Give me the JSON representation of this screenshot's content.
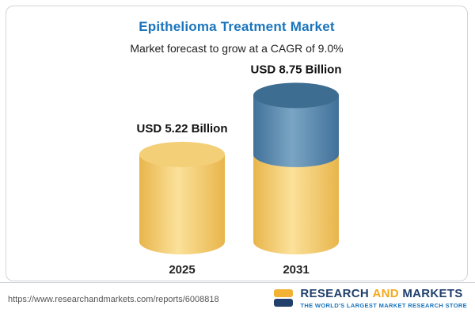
{
  "chart_data": {
    "type": "bar",
    "variant": "3d-cylinder",
    "title": "Epithelioma Treatment Market",
    "subtitle": "Market forecast to grow at a CAGR of 9.0%",
    "unit": "USD Billion",
    "categories": [
      "2025",
      "2031"
    ],
    "values": [
      5.22,
      8.75
    ],
    "value_labels": [
      "USD 5.22 Billion",
      "USD 8.75 Billion"
    ],
    "xlabel": "",
    "ylabel": "",
    "legend": "none",
    "grid": "off",
    "bars": [
      {
        "category": "2025",
        "value": 5.22,
        "label": "USD 5.22 Billion",
        "segments": [
          {
            "value": 5.22,
            "color": "yellow"
          }
        ]
      },
      {
        "category": "2031",
        "value": 8.75,
        "label": "USD 8.75 Billion",
        "segments": [
          {
            "value": 5.22,
            "color": "yellow"
          },
          {
            "value": 3.53,
            "color": "blue"
          }
        ]
      }
    ],
    "colors": {
      "yellow": {
        "edge": "#e8b54b",
        "mid": "#fbe19a",
        "cap": "#f3cf78"
      },
      "blue": {
        "edge": "#41719a",
        "mid": "#7aa5c4",
        "cap": "#3e6d92"
      }
    },
    "title_color": "#1b75bc"
  },
  "footer": {
    "url": "https://www.researchandmarkets.com/reports/6008818",
    "logo": {
      "word1": "RESEARCH",
      "word2": "AND",
      "word3": "MARKETS",
      "tagline": "THE WORLD'S LARGEST MARKET RESEARCH STORE"
    }
  }
}
